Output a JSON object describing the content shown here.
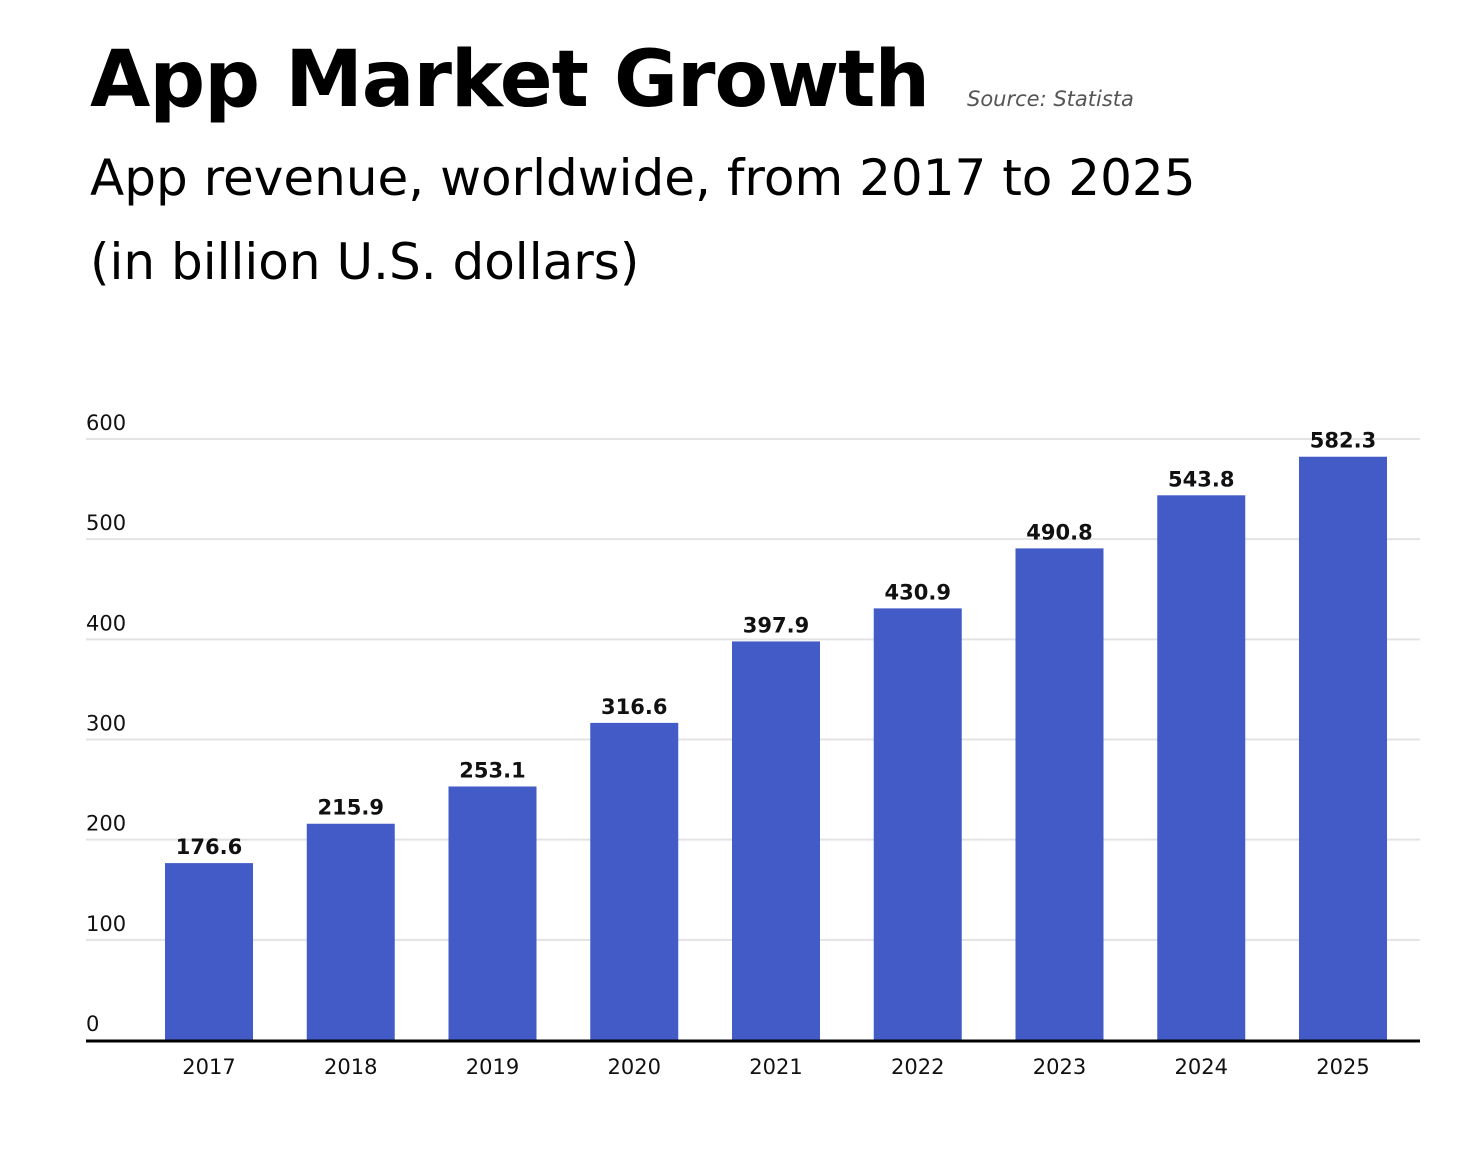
{
  "header": {
    "title": "App Market Growth",
    "source": "Source: Statista",
    "subtitle_line1": "App revenue, worldwide, from 2017 to 2025",
    "subtitle_line2": "(in billion U.S. dollars)"
  },
  "colors": {
    "bar": "#435bc7",
    "grid": "#e3e3e3",
    "axis": "#000000"
  },
  "chart_data": {
    "type": "bar",
    "title": "App Market Growth",
    "subtitle": "App revenue, worldwide, from 2017 to 2025 (in billion U.S. dollars)",
    "categories": [
      "2017",
      "2018",
      "2019",
      "2020",
      "2021",
      "2022",
      "2023",
      "2024",
      "2025"
    ],
    "values": [
      176.6,
      215.9,
      253.1,
      316.6,
      397.9,
      430.9,
      490.8,
      543.8,
      582.3
    ],
    "value_labels": [
      "176.6",
      "215.9",
      "253.1",
      "316.6",
      "397.9",
      "430.9",
      "490.8",
      "543.8",
      "582.3"
    ],
    "yticks": [
      "0",
      "100",
      "200",
      "300",
      "400",
      "500",
      "600"
    ],
    "ylim": [
      0,
      600
    ],
    "xlabel": "",
    "ylabel": "",
    "grid": true
  }
}
